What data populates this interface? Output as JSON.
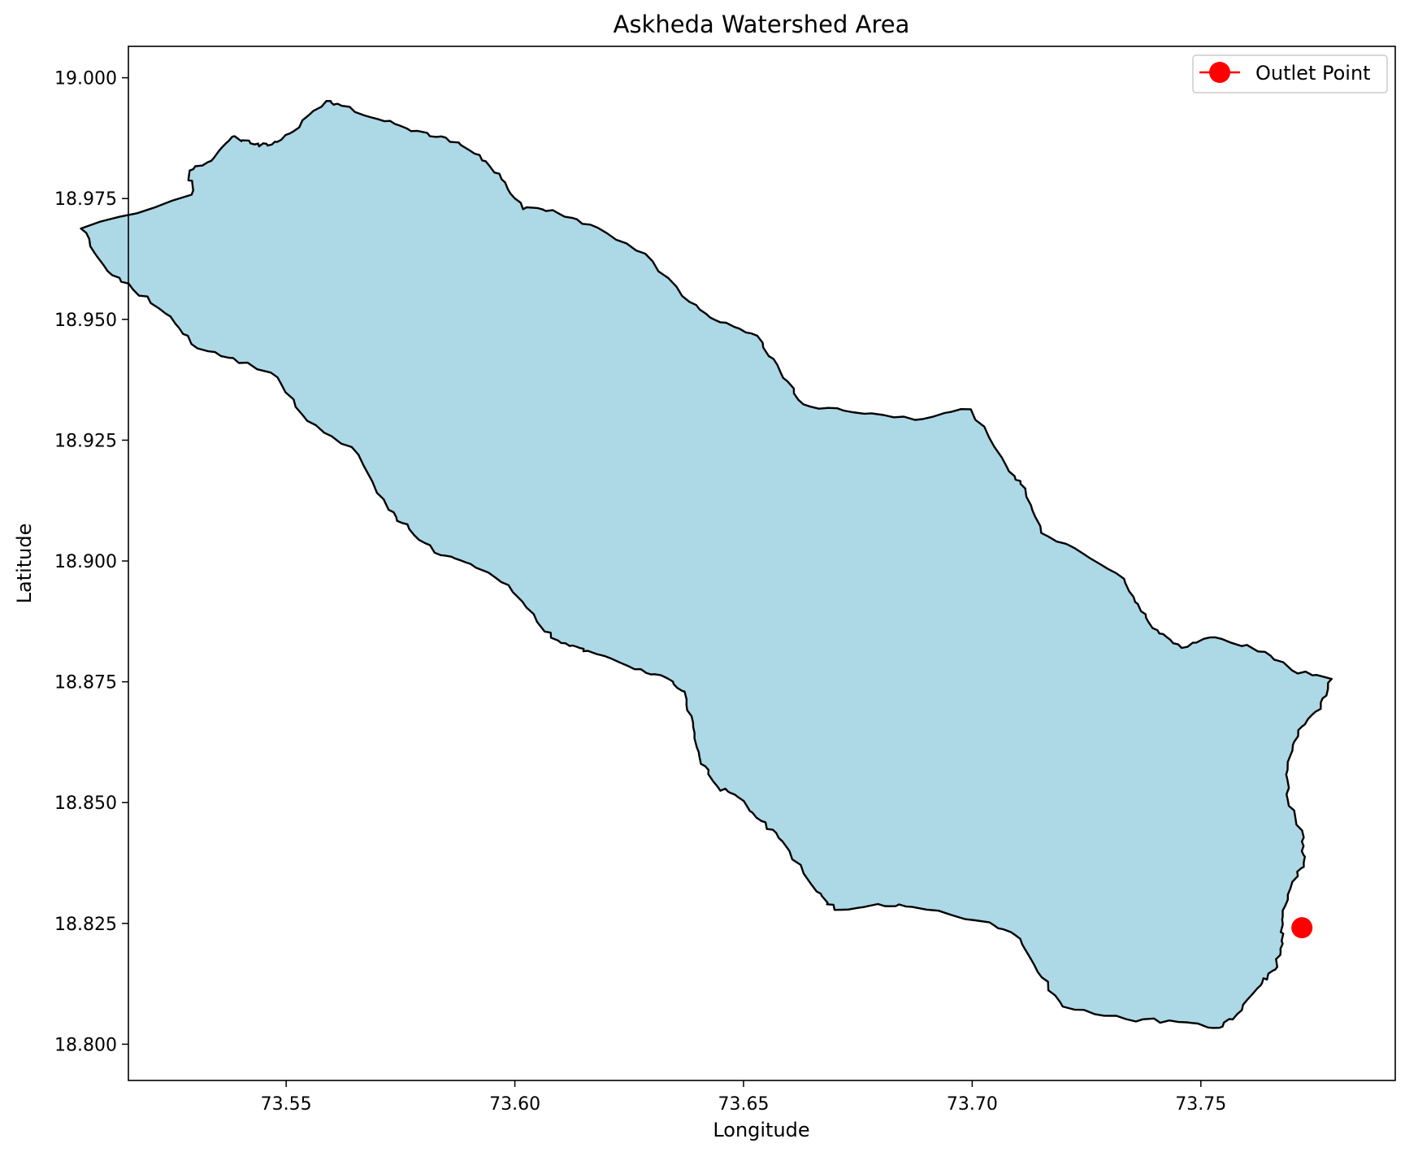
{
  "chart_data": {
    "type": "map",
    "title": "Askheda Watershed Area",
    "xlabel": "Longitude",
    "ylabel": "Latitude",
    "xlim": [
      73.5155,
      73.7925
    ],
    "ylim": [
      18.7925,
      19.0065
    ],
    "x_ticks": [
      {
        "value": 73.55,
        "label": "73.55"
      },
      {
        "value": 73.6,
        "label": "73.60"
      },
      {
        "value": 73.65,
        "label": "73.65"
      },
      {
        "value": 73.7,
        "label": "73.70"
      },
      {
        "value": 73.75,
        "label": "73.75"
      }
    ],
    "y_ticks": [
      {
        "value": 18.8,
        "label": "18.800"
      },
      {
        "value": 18.825,
        "label": "18.825"
      },
      {
        "value": 18.85,
        "label": "18.850"
      },
      {
        "value": 18.875,
        "label": "18.875"
      },
      {
        "value": 18.9,
        "label": "18.900"
      },
      {
        "value": 18.925,
        "label": "18.925"
      },
      {
        "value": 18.95,
        "label": "18.950"
      },
      {
        "value": 18.975,
        "label": "18.975"
      },
      {
        "value": 19.0,
        "label": "19.000"
      }
    ],
    "grid": false,
    "legend": {
      "placement": "top-right",
      "entries": [
        "Outlet Point"
      ]
    },
    "watershed": {
      "fill_color": "#add8e6",
      "edge_color": "#000000",
      "boundary": [
        [
          73.5289,
          18.9808
        ],
        [
          73.5336,
          18.9828
        ],
        [
          73.5382,
          18.9878
        ],
        [
          73.5431,
          18.9862
        ],
        [
          73.5469,
          18.9862
        ],
        [
          73.5514,
          18.9888
        ],
        [
          73.5588,
          18.9952
        ],
        [
          73.5621,
          18.9942
        ],
        [
          73.5715,
          18.991
        ],
        [
          73.5787,
          18.989
        ],
        [
          73.5849,
          18.9876
        ],
        [
          73.5923,
          18.984
        ],
        [
          73.5971,
          18.979
        ],
        [
          73.6018,
          18.9728
        ],
        [
          73.6083,
          18.9726
        ],
        [
          73.6165,
          18.9696
        ],
        [
          73.6285,
          18.9636
        ],
        [
          73.6382,
          18.9536
        ],
        [
          73.6449,
          18.9494
        ],
        [
          73.653,
          18.9466
        ],
        [
          73.6581,
          18.939
        ],
        [
          73.6631,
          18.9324
        ],
        [
          73.6738,
          18.9308
        ],
        [
          73.6875,
          18.9292
        ],
        [
          73.6997,
          18.9314
        ],
        [
          73.7076,
          18.9194
        ],
        [
          73.7116,
          18.915
        ],
        [
          73.7151,
          18.9058
        ],
        [
          73.7225,
          18.9026
        ],
        [
          73.7332,
          18.8963
        ],
        [
          73.7369,
          18.8896
        ],
        [
          73.7409,
          18.885
        ],
        [
          73.7458,
          18.882
        ],
        [
          73.7531,
          18.8842
        ],
        [
          73.764,
          18.8812
        ],
        [
          73.7699,
          18.8774
        ],
        [
          73.7786,
          18.8756
        ],
        [
          73.7762,
          18.8694
        ],
        [
          73.7713,
          18.865
        ],
        [
          73.769,
          18.8584
        ],
        [
          73.769,
          18.8506
        ],
        [
          73.7725,
          18.8428
        ],
        [
          73.7725,
          18.8376
        ],
        [
          73.77,
          18.8336
        ],
        [
          73.7679,
          18.8264
        ],
        [
          73.7679,
          18.8208
        ],
        [
          73.7662,
          18.8154
        ],
        [
          73.7631,
          18.8122
        ],
        [
          73.7579,
          18.8062
        ],
        [
          73.7541,
          18.8034
        ],
        [
          73.7451,
          18.8046
        ],
        [
          73.7336,
          18.8052
        ],
        [
          73.7198,
          18.8078
        ],
        [
          73.7143,
          18.815
        ],
        [
          73.7105,
          18.8218
        ],
        [
          73.7038,
          18.8252
        ],
        [
          73.6869,
          18.8284
        ],
        [
          73.6794,
          18.829
        ],
        [
          73.6699,
          18.8278
        ],
        [
          73.666,
          18.8316
        ],
        [
          73.6585,
          18.842
        ],
        [
          73.6539,
          18.8462
        ],
        [
          73.649,
          18.851
        ],
        [
          73.6444,
          18.8532
        ],
        [
          73.6407,
          18.858
        ],
        [
          73.639,
          18.8656
        ],
        [
          73.6371,
          18.873
        ],
        [
          73.6332,
          18.8758
        ],
        [
          73.6262,
          18.8776
        ],
        [
          73.616,
          18.8814
        ],
        [
          73.612,
          18.8824
        ],
        [
          73.6065,
          18.8854
        ],
        [
          73.5986,
          18.895
        ],
        [
          73.5903,
          18.8994
        ],
        [
          73.5838,
          18.9012
        ],
        [
          73.5769,
          18.9066
        ],
        [
          73.5724,
          18.9106
        ],
        [
          73.5658,
          18.922
        ],
        [
          73.5546,
          18.929
        ],
        [
          73.5481,
          18.938
        ],
        [
          73.5384,
          18.942
        ],
        [
          73.5306,
          18.944
        ],
        [
          73.5247,
          18.9506
        ],
        [
          73.5165,
          18.9562
        ],
        [
          73.5101,
          18.9612
        ],
        [
          73.5051,
          18.9688
        ],
        [
          73.5293,
          18.9758
        ]
      ]
    },
    "outlet_point": {
      "name": "Outlet Point",
      "lon": 73.7721,
      "lat": 18.8241,
      "color": "#ff0000"
    }
  }
}
